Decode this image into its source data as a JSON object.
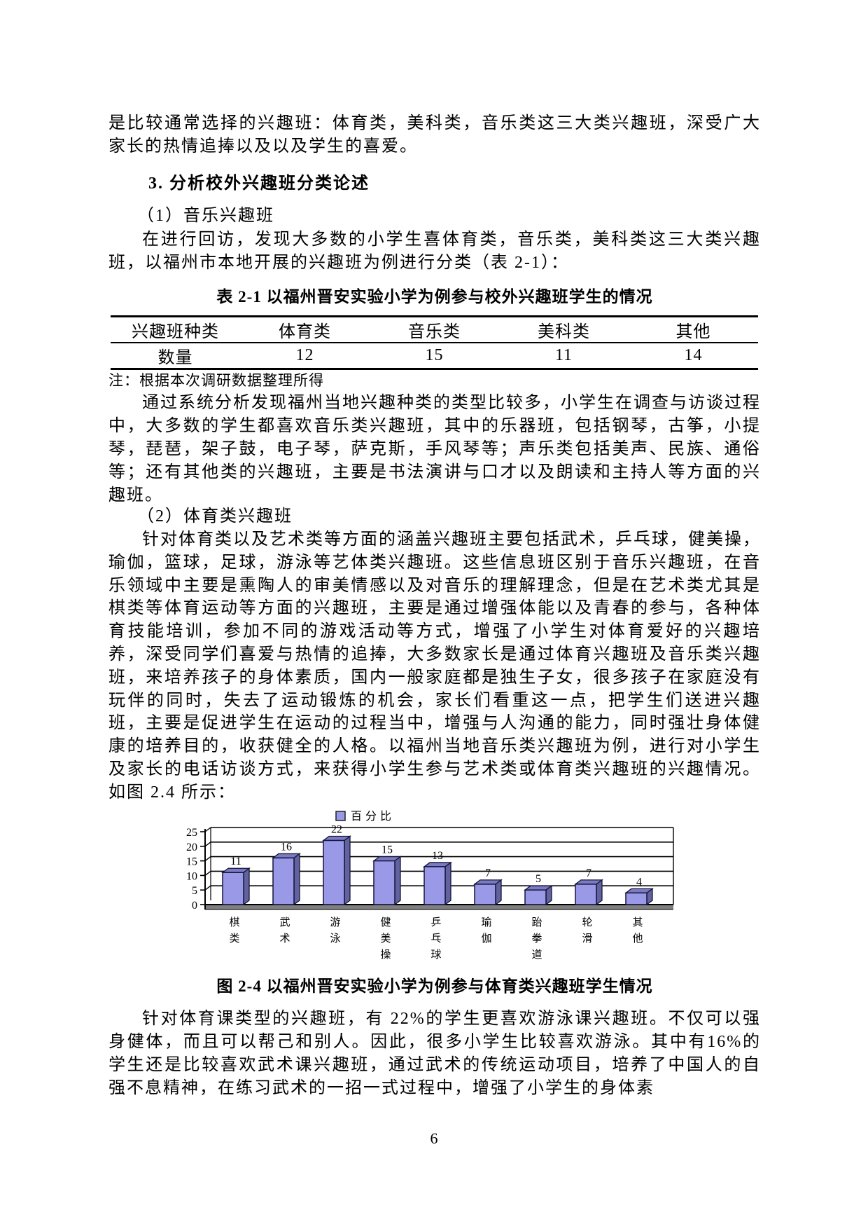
{
  "page": {
    "number": "6"
  },
  "content": {
    "para_intro": "是比较通常选择的兴趣班：体育类，美科类，音乐类这三大类兴趣班，深受广大家长的热情追捧以及以及学生的喜爱。",
    "heading3": "3. 分析校外兴趣班分类论述",
    "sub1": "（1）音乐兴趣班",
    "para1": "在进行回访，发现大多数的小学生喜体育类，音乐类，美科类这三大类兴趣班，以福州市本地开展的兴趣班为例进行分类（表 2-1）：",
    "table_caption": "表 2-1 以福州晋安实验小学为例参与校外兴趣班学生的情况",
    "table_note": "注：根据本次调研数据整理所得",
    "para2": "通过系统分析发现福州当地兴趣种类的类型比较多，小学生在调查与访谈过程中，大多数的学生都喜欢音乐类兴趣班，其中的乐器班，包括钢琴，古筝，小提琴，琵琶，架子鼓，电子琴，萨克斯，手风琴等；声乐类包括美声、民族、通俗等；还有其他类的兴趣班，主要是书法演讲与口才以及朗读和主持人等方面的兴趣班。",
    "sub2": "（2）体育类兴趣班",
    "para3": "针对体育类以及艺术类等方面的涵盖兴趣班主要包括武术，乒乓球，健美操，瑜伽，篮球，足球，游泳等艺体类兴趣班。这些信息班区别于音乐兴趣班，在音乐领域中主要是熏陶人的审美情感以及对音乐的理解理念，但是在艺术类尤其是棋类等体育运动等方面的兴趣班，主要是通过增强体能以及青春的参与，各种体育技能培训，参加不同的游戏活动等方式，增强了小学生对体育爱好的兴趣培养，深受同学们喜爱与热情的追捧，大多数家长是通过体育兴趣班及音乐类兴趣班，来培养孩子的身体素质，国内一般家庭都是独生子女，很多孩子在家庭没有玩伴的同时，失去了运动锻炼的机会，家长们看重这一点，把学生们送进兴趣班，主要是促进学生在运动的过程当中，增强与人沟通的能力，同时强壮身体健康的培养目的，收获健全的人格。以福州当地音乐类兴趣班为例，进行对小学生及家长的电话访谈方式，来获得小学生参与艺术类或体育类兴趣班的兴趣情况。如图 2.4 所示：",
    "figure_caption": "图 2-4 以福州晋安实验小学为例参与体育类兴趣班学生情况",
    "para4": "针对体育课类型的兴趣班，有 22%的学生更喜欢游泳课兴趣班。不仅可以强身健体，而且可以帮己和别人。因此，很多小学生比较喜欢游泳。其中有16%的学生还是比较喜欢武术课兴趣班，通过武术的传统运动项目，培养了中国人的自强不息精神，在练习武术的一招一式过程中，增强了小学生的身体素"
  },
  "table": {
    "headers": [
      "兴趣班种类",
      "体育类",
      "音乐类",
      "美科类",
      "其他"
    ],
    "row_label": "数量",
    "row_values": [
      "12",
      "15",
      "11",
      "14"
    ]
  },
  "chart_data": {
    "type": "bar",
    "title": "",
    "legend": "百分比",
    "legend_position": "top",
    "categories": [
      "棋类",
      "武术",
      "游泳",
      "健美操",
      "乒乓球",
      "瑜伽",
      "跆拳道",
      "轮滑",
      "其他"
    ],
    "values": [
      11,
      16,
      22,
      15,
      13,
      7,
      5,
      7,
      4
    ],
    "xlabel": "",
    "ylabel": "",
    "ylim": [
      0,
      25
    ],
    "ytick_step": 5,
    "yticks": [
      0,
      5,
      10,
      15,
      20,
      25
    ],
    "grid": true,
    "bar_front_color": "#9999E8",
    "bar_top_color": "#7B7BC4",
    "bar_side_color": "#62629F",
    "bar_stroke_color": "#15153a",
    "floor_color": "#808080",
    "grid_color": "#000000"
  }
}
